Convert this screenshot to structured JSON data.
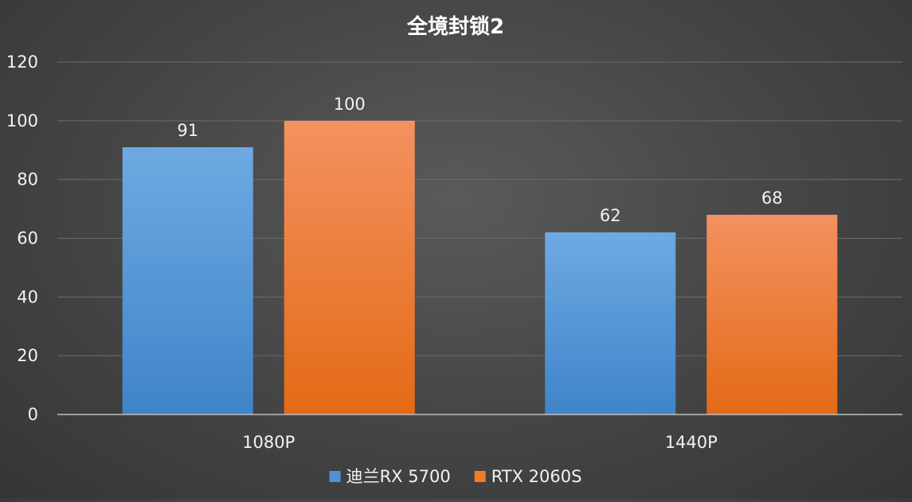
{
  "chart_data": {
    "type": "bar",
    "title": "全境封锁2",
    "categories": [
      "1080P",
      "1440P"
    ],
    "series": [
      {
        "name": "迪兰RX 5700",
        "values": [
          91,
          62
        ],
        "color": "#4f93d6"
      },
      {
        "name": "RTX 2060S",
        "values": [
          100,
          68
        ],
        "color": "#f07d25"
      }
    ],
    "ylim": [
      0,
      120
    ],
    "yticks": [
      0,
      20,
      40,
      60,
      80,
      100,
      120
    ],
    "grid": true,
    "legend": "bottom",
    "xlabel": "",
    "ylabel": ""
  }
}
